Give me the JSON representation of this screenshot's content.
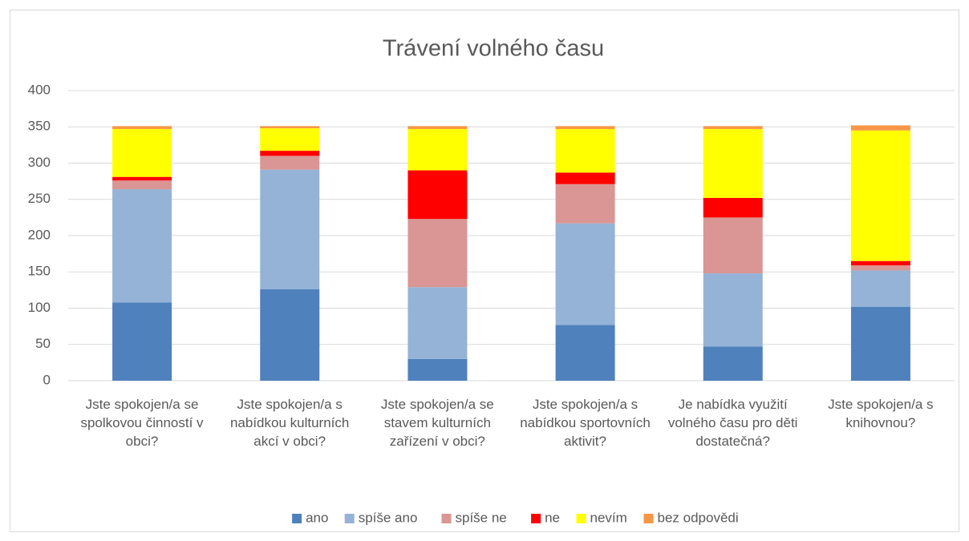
{
  "chart_data": {
    "type": "stacked_bar",
    "title": "Trávení volného času",
    "categories": [
      "Jste spokojen/a se spolkovou činností v obci?",
      "Jste spokojen/a s nabídkou kulturních akcí v obci?",
      "Jste spokojen/a se stavem kulturních zařízení v obci?",
      "Jste spokojen/a s nabídkou sportovních aktivit?",
      "Je nabídka využití volného času pro děti dostatečná?",
      "Jste spokojen/a s knihovnou?"
    ],
    "series": [
      {
        "name": "ano",
        "color": "#4f81bd",
        "values": [
          108,
          126,
          30,
          77,
          47,
          102
        ]
      },
      {
        "name": "spíše ano",
        "color": "#95b3d7",
        "values": [
          156,
          165,
          99,
          140,
          101,
          50
        ]
      },
      {
        "name": "spíše ne",
        "color": "#d99694",
        "values": [
          12,
          19,
          94,
          54,
          77,
          7
        ]
      },
      {
        "name": "ne",
        "color": "#ff0000",
        "values": [
          5,
          7,
          67,
          16,
          27,
          6
        ]
      },
      {
        "name": "nevím",
        "color": "#ffff00",
        "values": [
          66,
          31,
          57,
          60,
          95,
          180
        ]
      },
      {
        "name": "bez odpovědi",
        "color": "#f79646",
        "values": [
          4,
          3,
          4,
          4,
          4,
          7
        ]
      }
    ],
    "ylim": [
      0,
      400
    ],
    "yticks": [
      0,
      50,
      100,
      150,
      200,
      250,
      300,
      350,
      400
    ],
    "grid": true,
    "legend": "bottom"
  }
}
